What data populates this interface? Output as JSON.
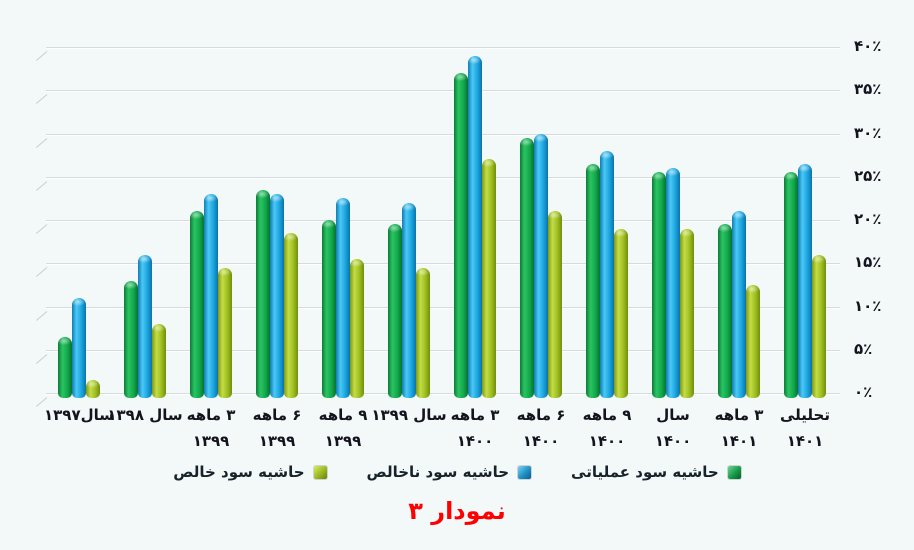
{
  "title": {
    "text": "نمودار ۳",
    "color": "#fe0000"
  },
  "y_axis": {
    "labels": [
      "۴۰٪",
      "۳۵٪",
      "۳۰٪",
      "۲۵٪",
      "۲۰٪",
      "۱۵٪",
      "۱۰٪",
      "۵٪",
      "۰٪"
    ],
    "max": 40,
    "min": 0,
    "step": 5
  },
  "x_axis": {
    "labels": [
      [
        "سال۱۳۹۷"
      ],
      [
        "سال ۱۳۹۸"
      ],
      [
        "۳ ماهه",
        "۱۳۹۹"
      ],
      [
        "۶ ماهه",
        "۱۳۹۹"
      ],
      [
        "۹ ماهه",
        "۱۳۹۹"
      ],
      [
        "سال ۱۳۹۹"
      ],
      [
        "۳ ماهه",
        "۱۴۰۰"
      ],
      [
        "۶ ماهه",
        "۱۴۰۰"
      ],
      [
        "۹ ماهه",
        "۱۴۰۰"
      ],
      [
        "سال",
        "۱۴۰۰"
      ],
      [
        "۳ ماهه",
        "۱۴۰۱"
      ],
      [
        "تحلیلی",
        "۱۴۰۱"
      ]
    ]
  },
  "legend": {
    "items": [
      {
        "label": "حاشیه سود خالص",
        "color": "#9ab821",
        "color_key": "olive"
      },
      {
        "label": "حاشیه سود ناخالص",
        "color": "#1e8fc4",
        "color_key": "blue"
      },
      {
        "label": "حاشیه سود عملیاتی",
        "color": "#169a46",
        "color_key": "green"
      }
    ]
  },
  "chart_data": {
    "type": "bar",
    "categories": [
      "سال۱۳۹۷",
      "سال ۱۳۹۸",
      "۳ ماهه ۱۳۹۹",
      "۶ ماهه ۱۳۹۹",
      "۹ ماهه ۱۳۹۹",
      "سال ۱۳۹۹",
      "۳ ماهه ۱۴۰۰",
      "۶ ماهه ۱۴۰۰",
      "۹ ماهه ۱۴۰۰",
      "سال ۱۴۰۰",
      "۳ ماهه ۱۴۰۱",
      "تحلیلی ۱۴۰۱"
    ],
    "series": [
      {
        "name": "حاشیه سود عملیاتی",
        "color": "#169a46",
        "color_key": "green",
        "values": [
          6.5,
          13,
          21,
          23.5,
          20,
          19.5,
          37,
          29.5,
          26.5,
          25.5,
          19.5,
          25.5
        ]
      },
      {
        "name": "حاشیه سود ناخالص",
        "color": "#1e8fc4",
        "color_key": "blue",
        "values": [
          11,
          16,
          23,
          23,
          22.5,
          22,
          39,
          30,
          28,
          26,
          21,
          26.5
        ]
      },
      {
        "name": "حاشیه سود خالص",
        "color": "#9ab821",
        "color_key": "olive",
        "values": [
          1.5,
          8,
          14.5,
          18.5,
          15.5,
          14.5,
          27,
          21,
          19,
          19,
          12.5,
          16
        ]
      }
    ],
    "title": "نمودار ۳",
    "xlabel": "",
    "ylabel": "",
    "ylim": [
      0,
      40
    ],
    "ytick_suffix": "٪",
    "grid": true,
    "legend_position": "bottom",
    "bar_direction": "vertical"
  }
}
